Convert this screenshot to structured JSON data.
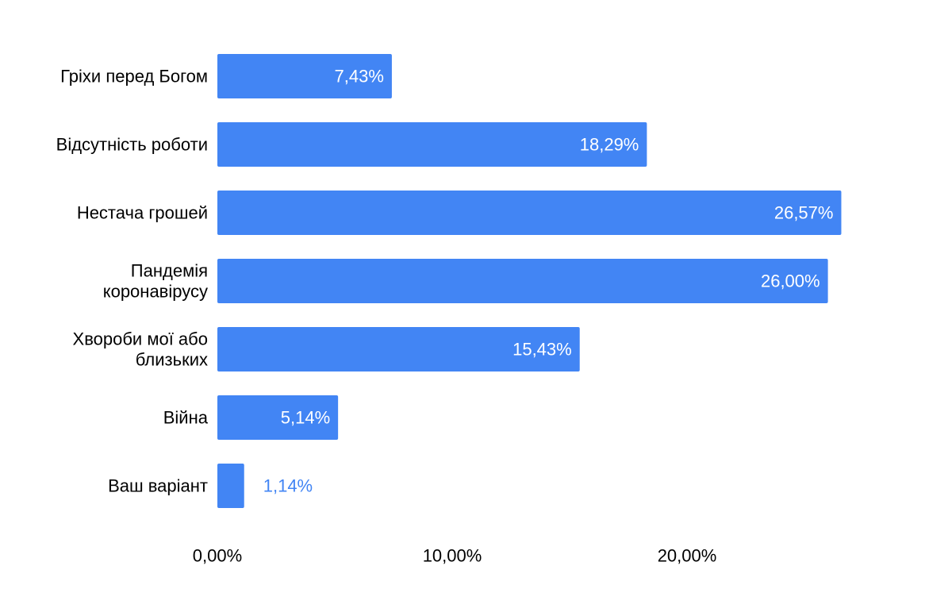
{
  "chart_data": {
    "type": "bar",
    "orientation": "horizontal",
    "categories": [
      "Гріхи перед Богом",
      "Відсутність роботи",
      "Нестача грошей",
      "Пандемія коронавірусу",
      "Хвороби мої або близьких",
      "Війна",
      "Ваш варіант"
    ],
    "category_lines": [
      [
        "Гріхи перед Богом"
      ],
      [
        "Відсутність роботи"
      ],
      [
        "Нестача грошей"
      ],
      [
        "Пандемія",
        "коронавірусу"
      ],
      [
        "Хвороби мої або",
        "близьких"
      ],
      [
        "Війна"
      ],
      [
        "Ваш варіант"
      ]
    ],
    "values": [
      7.43,
      18.29,
      26.57,
      26.0,
      15.43,
      5.14,
      1.14
    ],
    "data_labels": [
      "7,43%",
      "18,29%",
      "26,57%",
      "26,00%",
      "15,43%",
      "5,14%",
      "1,14%"
    ],
    "xticks": [
      0,
      10,
      20
    ],
    "xtick_labels": [
      "0,00%",
      "10,00%",
      "20,00%"
    ],
    "xlim": [
      0,
      30
    ],
    "grid": false,
    "legend": "none",
    "colors": {
      "bar": "#4285f4",
      "label_inside": "#ffffff",
      "label_outside": "#4285f4"
    }
  }
}
